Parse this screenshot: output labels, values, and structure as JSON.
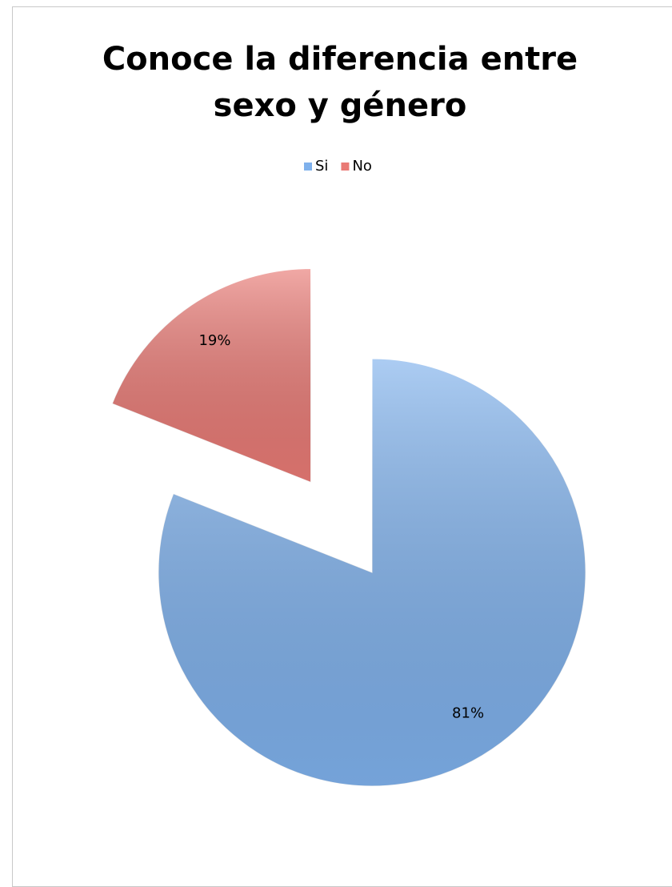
{
  "chart_data": {
    "type": "pie",
    "title": "Conoce la diferencia entre sexo y género",
    "categories": [
      "Si",
      "No"
    ],
    "values": [
      81,
      19
    ],
    "value_labels": [
      "81%",
      "19%"
    ],
    "colors": [
      "#7fb1ec",
      "#e97a75"
    ],
    "exploded": [
      false,
      true
    ],
    "legend": "top"
  }
}
